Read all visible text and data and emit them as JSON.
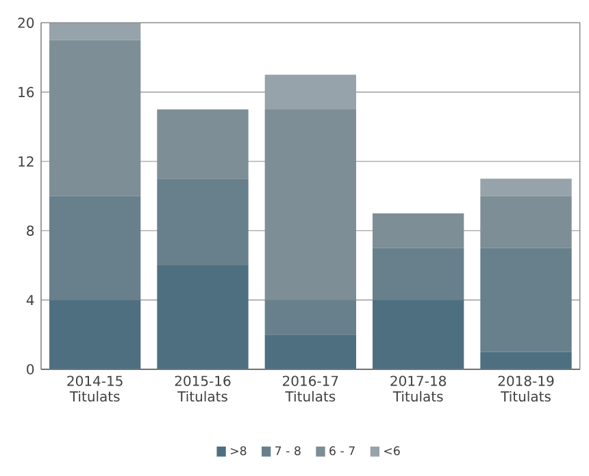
{
  "chart_data": {
    "type": "bar",
    "stacked": true,
    "categories": [
      "2014-15 Titulats",
      "2015-16 Titulats",
      "2016-17 Titulats",
      "2017-18 Titulats",
      "2018-19 Titulats"
    ],
    "series": [
      {
        "name": ">8",
        "color": "#4e6f80",
        "values": [
          4,
          6,
          2,
          4,
          1
        ]
      },
      {
        "name": "7 - 8",
        "color": "#68808c",
        "values": [
          6,
          5,
          2,
          3,
          6
        ]
      },
      {
        "name": "6 - 7",
        "color": "#7e8e96",
        "values": [
          9,
          4,
          11,
          2,
          3
        ]
      },
      {
        "name": "<6",
        "color": "#97a3aa",
        "values": [
          1,
          0,
          2,
          0,
          1
        ]
      }
    ],
    "ylim": [
      0,
      20
    ],
    "yticks": [
      0,
      4,
      8,
      12,
      16,
      20
    ],
    "grid": "y",
    "legend": "bottom"
  }
}
